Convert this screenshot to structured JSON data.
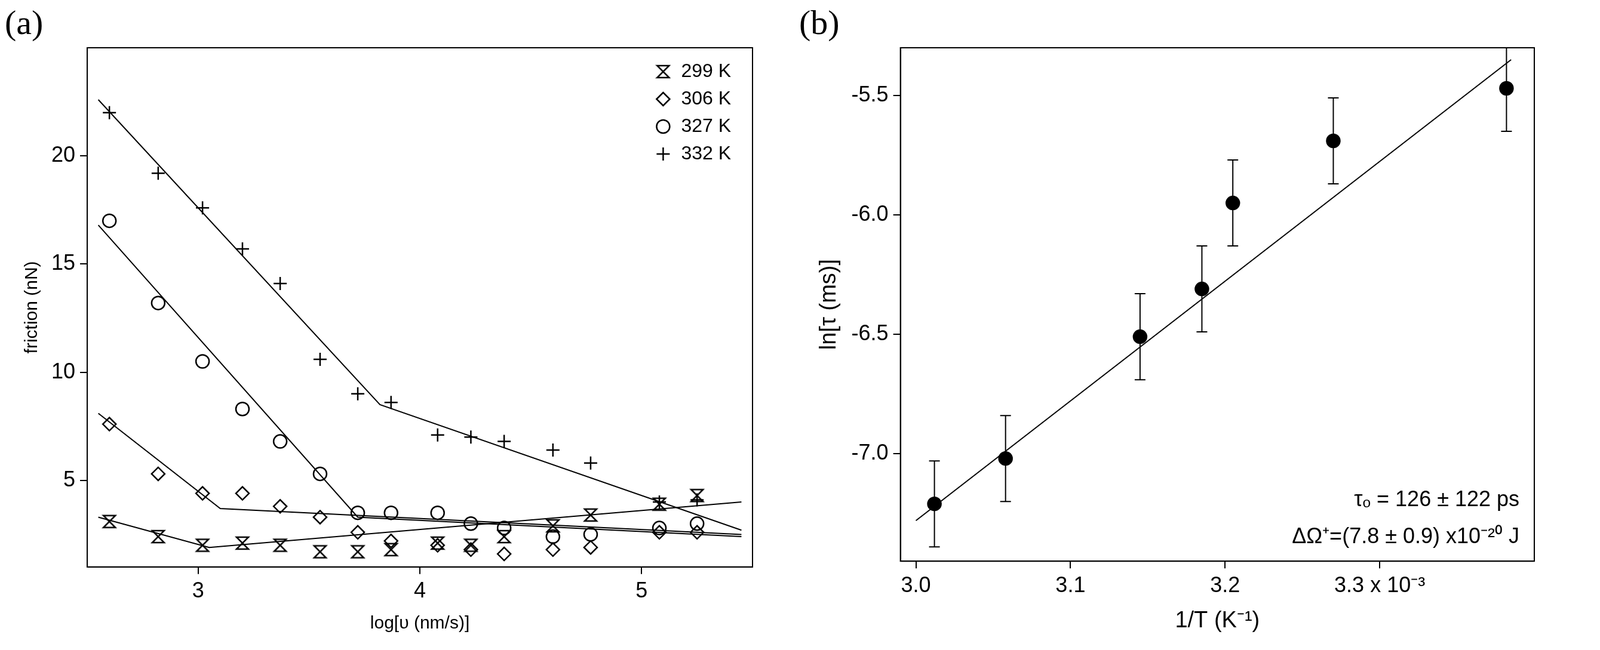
{
  "chart_data": [
    {
      "type": "scatter",
      "title": "(a)",
      "x_label": "log[υ (nm/s)]",
      "y_label": "friction (nN)",
      "xlim": [
        2.5,
        5.5
      ],
      "xticks": [
        3,
        4,
        5
      ],
      "ylim": [
        1,
        25
      ],
      "yticks": [
        5,
        10,
        15,
        20
      ],
      "grid": false,
      "legend": "upper right",
      "series": [
        {
          "name": "299 K",
          "color": "#000000",
          "marker": "hourglass",
          "x": [
            2.6,
            2.82,
            3.02,
            3.2,
            3.37,
            3.55,
            3.72,
            3.87,
            4.08,
            4.23,
            4.38,
            4.6,
            4.77,
            5.08,
            5.25
          ],
          "values": [
            3.1,
            2.4,
            2.0,
            2.1,
            2.0,
            1.7,
            1.7,
            1.8,
            2.1,
            2.0,
            2.4,
            2.9,
            3.4,
            3.9,
            4.3
          ],
          "fit_x": [
            2.55,
            3.05,
            5.45
          ],
          "fit_y": [
            3.3,
            1.9,
            4.0
          ]
        },
        {
          "name": "306 K",
          "color": "#000000",
          "marker": "diamond_open",
          "x": [
            2.6,
            2.82,
            3.02,
            3.2,
            3.37,
            3.55,
            3.72,
            3.87,
            4.08,
            4.23,
            4.38,
            4.6,
            4.77,
            5.08,
            5.25
          ],
          "values": [
            7.6,
            5.3,
            4.4,
            4.4,
            3.8,
            3.3,
            2.6,
            2.2,
            2.0,
            1.8,
            1.6,
            1.8,
            1.9,
            2.6,
            2.6
          ],
          "fit_x": [
            2.55,
            3.1,
            5.45
          ],
          "fit_y": [
            8.1,
            3.7,
            2.5
          ]
        },
        {
          "name": "327 K",
          "color": "#000000",
          "marker": "circle_open",
          "x": [
            2.6,
            2.82,
            3.02,
            3.2,
            3.37,
            3.55,
            3.72,
            3.87,
            4.08,
            4.23,
            4.38,
            4.6,
            4.77,
            5.08,
            5.25
          ],
          "values": [
            17.0,
            13.2,
            10.5,
            8.3,
            6.8,
            5.3,
            3.5,
            3.5,
            3.5,
            3.0,
            2.8,
            2.4,
            2.5,
            2.8,
            3.0
          ],
          "fit_x": [
            2.55,
            3.72,
            5.45
          ],
          "fit_y": [
            16.8,
            3.3,
            2.4
          ]
        },
        {
          "name": "332 K",
          "color": "#000000",
          "marker": "plus",
          "x": [
            2.6,
            2.82,
            3.02,
            3.2,
            3.37,
            3.55,
            3.72,
            3.87,
            4.08,
            4.23,
            4.38,
            4.6,
            4.77,
            5.08,
            5.25
          ],
          "values": [
            22.0,
            19.2,
            17.6,
            15.7,
            14.1,
            10.6,
            9.0,
            8.6,
            7.1,
            7.0,
            6.8,
            6.4,
            5.8,
            4.0,
            4.1
          ],
          "fit_x": [
            2.55,
            3.82,
            5.45
          ],
          "fit_y": [
            22.6,
            8.5,
            2.7
          ]
        }
      ]
    },
    {
      "type": "scatter",
      "title": "(b)",
      "x_label": "1/T (K⁻¹)",
      "y_label": "ln[τ (ms)]",
      "xlim": [
        2.99,
        3.4
      ],
      "xticks": [
        {
          "value": 3.0,
          "label": "3.0"
        },
        {
          "value": 3.1,
          "label": "3.1"
        },
        {
          "value": 3.2,
          "label": "3.2"
        },
        {
          "value": 3.3,
          "label": "3.3 x 10⁻³"
        }
      ],
      "ylim": [
        -7.45,
        -5.3
      ],
      "yticks": [
        {
          "value": -7.0,
          "label": "-7.0"
        },
        {
          "value": -6.5,
          "label": "-6.5"
        },
        {
          "value": -6.0,
          "label": "-6.0"
        },
        {
          "value": -5.5,
          "label": "-5.5"
        }
      ],
      "grid": false,
      "annotations": [
        "τₒ = 126 ± 122 ps",
        "ΔΩ⁺=(7.8 ± 0.9) x10⁻²⁰ J"
      ],
      "series": [
        {
          "color": "#000000",
          "marker": "circle",
          "x": [
            3.012,
            3.058,
            3.145,
            3.185,
            3.205,
            3.27,
            3.382
          ],
          "values": [
            -7.21,
            -7.02,
            -6.51,
            -6.31,
            -5.95,
            -5.69,
            -5.47
          ],
          "errors": [
            0.18,
            0.18,
            0.18,
            0.18,
            0.18,
            0.18,
            0.18
          ],
          "fit_x": [
            3.0,
            3.385
          ],
          "fit_y": [
            -7.28,
            -5.35
          ]
        }
      ]
    }
  ]
}
